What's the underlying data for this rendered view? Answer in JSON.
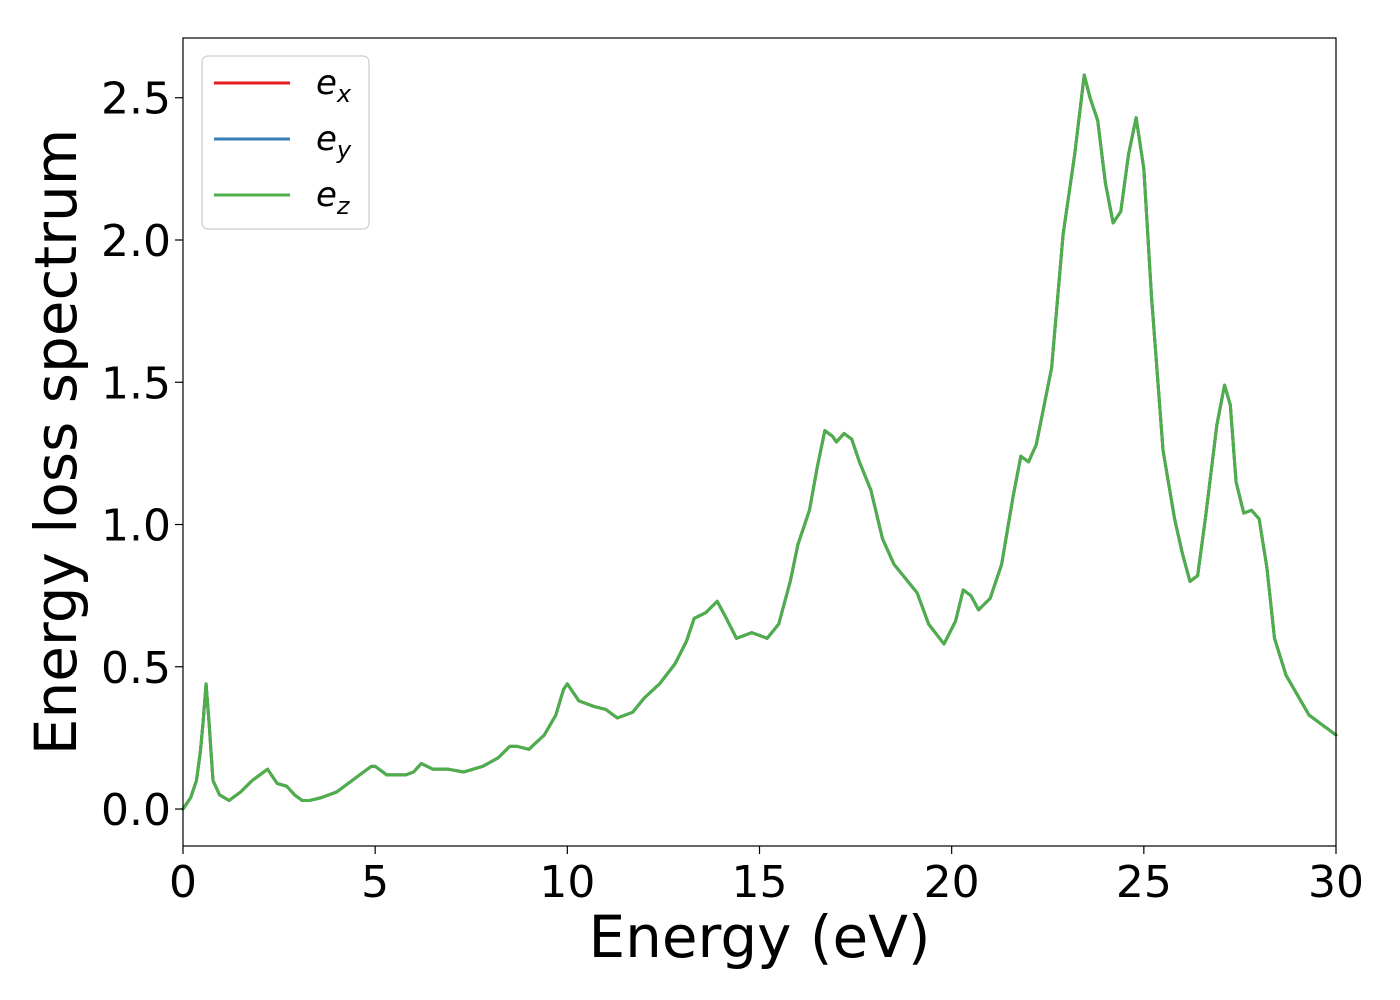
{
  "chart_data": {
    "type": "line",
    "title": "",
    "xlabel": "Energy (eV)",
    "ylabel": "Energy loss spectrum",
    "xlim": [
      0,
      30
    ],
    "ylim": [
      -0.13,
      2.71
    ],
    "xticks": [
      0,
      5,
      10,
      15,
      20,
      25,
      30
    ],
    "xtick_labels": [
      "0",
      "5",
      "10",
      "15",
      "20",
      "25",
      "30"
    ],
    "yticks": [
      0.0,
      0.5,
      1.0,
      1.5,
      2.0,
      2.5
    ],
    "ytick_labels": [
      "0.0",
      "0.5",
      "1.0",
      "1.5",
      "2.0",
      "2.5"
    ],
    "grid": false,
    "legend_position": "top-left",
    "series": [
      {
        "name": "e_x",
        "label_base": "e",
        "label_sub": "x",
        "color": "#e41a1c"
      },
      {
        "name": "e_y",
        "label_base": "e",
        "label_sub": "y",
        "color": "#377eb8"
      },
      {
        "name": "e_z",
        "label_base": "e",
        "label_sub": "z",
        "color": "#4daf4a"
      }
    ],
    "x": [
      0,
      0.2,
      0.35,
      0.45,
      0.52,
      0.6,
      0.68,
      0.78,
      0.95,
      1.2,
      1.5,
      1.8,
      2.0,
      2.2,
      2.45,
      2.7,
      2.9,
      3.1,
      3.3,
      3.6,
      4.0,
      4.5,
      4.9,
      5.0,
      5.3,
      5.8,
      6.0,
      6.2,
      6.5,
      6.9,
      7.3,
      7.8,
      8.2,
      8.5,
      8.7,
      9.0,
      9.4,
      9.7,
      9.9,
      10.0,
      10.3,
      10.7,
      11.0,
      11.3,
      11.7,
      12.0,
      12.4,
      12.8,
      13.1,
      13.3,
      13.6,
      13.9,
      14.1,
      14.4,
      14.8,
      15.2,
      15.5,
      15.8,
      16.0,
      16.3,
      16.5,
      16.7,
      16.9,
      17.0,
      17.2,
      17.4,
      17.6,
      17.9,
      18.2,
      18.5,
      18.8,
      19.1,
      19.4,
      19.8,
      20.1,
      20.3,
      20.5,
      20.7,
      21.0,
      21.3,
      21.6,
      21.8,
      22.0,
      22.2,
      22.6,
      22.9,
      23.2,
      23.45,
      23.6,
      23.8,
      24.0,
      24.2,
      24.4,
      24.6,
      24.8,
      25.0,
      25.2,
      25.5,
      25.8,
      26.0,
      26.2,
      26.4,
      26.6,
      26.9,
      27.1,
      27.25,
      27.4,
      27.6,
      27.8,
      28.0,
      28.2,
      28.4,
      28.7,
      29.0,
      29.3,
      29.6,
      29.8,
      30.0
    ],
    "y": [
      0.0,
      0.04,
      0.1,
      0.2,
      0.3,
      0.44,
      0.3,
      0.1,
      0.05,
      0.03,
      0.06,
      0.1,
      0.12,
      0.14,
      0.09,
      0.08,
      0.05,
      0.03,
      0.03,
      0.04,
      0.06,
      0.11,
      0.15,
      0.15,
      0.12,
      0.12,
      0.13,
      0.16,
      0.14,
      0.14,
      0.13,
      0.15,
      0.18,
      0.22,
      0.22,
      0.21,
      0.26,
      0.33,
      0.42,
      0.44,
      0.38,
      0.36,
      0.35,
      0.32,
      0.34,
      0.39,
      0.44,
      0.51,
      0.59,
      0.67,
      0.69,
      0.73,
      0.68,
      0.6,
      0.62,
      0.6,
      0.65,
      0.8,
      0.93,
      1.05,
      1.2,
      1.33,
      1.31,
      1.29,
      1.32,
      1.3,
      1.22,
      1.12,
      0.95,
      0.86,
      0.81,
      0.76,
      0.65,
      0.58,
      0.66,
      0.77,
      0.75,
      0.7,
      0.74,
      0.86,
      1.1,
      1.24,
      1.22,
      1.28,
      1.55,
      2.02,
      2.3,
      2.58,
      2.5,
      2.42,
      2.2,
      2.06,
      2.1,
      2.3,
      2.43,
      2.25,
      1.8,
      1.26,
      1.02,
      0.9,
      0.8,
      0.82,
      1.02,
      1.35,
      1.49,
      1.42,
      1.15,
      1.04,
      1.05,
      1.02,
      0.85,
      0.6,
      0.47,
      0.4,
      0.33,
      0.3,
      0.28,
      0.26
    ]
  }
}
